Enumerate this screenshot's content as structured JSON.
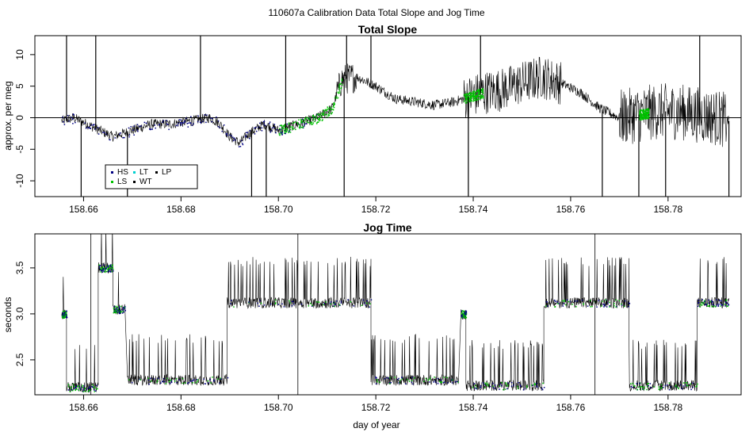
{
  "suptitle": "110607a   Calibration Data Total Slope and Jog Time",
  "xlabel": "day of year",
  "legend": {
    "entries": [
      {
        "label": "HS",
        "color": "#000080"
      },
      {
        "label": "LT",
        "color": "#00d0d0"
      },
      {
        "label": "LP",
        "color": "#000000"
      },
      {
        "label": "LS",
        "color": "#00c000"
      },
      {
        "label": "WT",
        "color": "#000000"
      }
    ]
  },
  "chart_data": [
    {
      "type": "line",
      "title": "Total Slope",
      "xlabel": "",
      "ylabel": "approx. per meg",
      "xlim": [
        158.65,
        158.795
      ],
      "ylim": [
        -12.5,
        13
      ],
      "xticks": [
        "158.66",
        "158.68",
        "158.70",
        "158.72",
        "158.74",
        "158.76",
        "158.78"
      ],
      "yticks": [
        "-10",
        "-5",
        "0",
        "5",
        "10"
      ],
      "hline": 0,
      "series": [
        {
          "color": "#000000",
          "x": [
            158.6555,
            158.658,
            158.662,
            158.666,
            158.67,
            158.674,
            158.678,
            158.682,
            158.686,
            158.688,
            158.69,
            158.692,
            158.694,
            158.697,
            158.7,
            158.704,
            158.708,
            158.711,
            158.713,
            158.716,
            158.72,
            158.724,
            158.728,
            158.732,
            158.736,
            158.738,
            158.742,
            158.746,
            158.75,
            158.754,
            158.758,
            158.762,
            158.766,
            158.77,
            158.774,
            158.778,
            158.782,
            158.786,
            158.79,
            158.7925
          ],
          "y": [
            -0.5,
            0.0,
            -1.5,
            -3.0,
            -2.0,
            -1.0,
            -1.0,
            -0.5,
            0.0,
            -1.0,
            -3.0,
            -4.0,
            -2.5,
            -1.0,
            -2.0,
            -1.0,
            0.0,
            1.5,
            6.0,
            6.5,
            5.0,
            3.0,
            2.5,
            2.0,
            2.5,
            3.0,
            4.0,
            4.5,
            5.5,
            6.5,
            5.5,
            4.0,
            1.5,
            0.0,
            0.5,
            1.0,
            1.0,
            0.5,
            0.0,
            -0.5
          ]
        }
      ]
    },
    {
      "type": "line",
      "title": "Jog Time",
      "xlabel": "day of year",
      "ylabel": "seconds",
      "xlim": [
        158.65,
        158.795
      ],
      "ylim": [
        2.12,
        3.87
      ],
      "xticks": [
        "158.66",
        "158.68",
        "158.70",
        "158.72",
        "158.74",
        "158.76",
        "158.78"
      ],
      "yticks": [
        "2.5",
        "3.0",
        "3.5"
      ],
      "series": [
        {
          "color": "#000000",
          "segments": [
            {
              "x0": 158.6555,
              "x1": 158.6565,
              "y": 3.0
            },
            {
              "x0": 158.6565,
              "x1": 158.663,
              "y": 2.2
            },
            {
              "x0": 158.663,
              "x1": 158.666,
              "y": 3.5
            },
            {
              "x0": 158.666,
              "x1": 158.6685,
              "y": 3.05
            },
            {
              "x0": 158.669,
              "x1": 158.6895,
              "y": 2.28
            },
            {
              "x0": 158.6895,
              "x1": 158.719,
              "y": 3.12
            },
            {
              "x0": 158.719,
              "x1": 158.737,
              "y": 2.28
            },
            {
              "x0": 158.7375,
              "x1": 158.7385,
              "y": 3.0
            },
            {
              "x0": 158.7385,
              "x1": 158.7545,
              "y": 2.22
            },
            {
              "x0": 158.7545,
              "x1": 158.772,
              "y": 3.12
            },
            {
              "x0": 158.772,
              "x1": 158.786,
              "y": 2.22
            },
            {
              "x0": 158.786,
              "x1": 158.7925,
              "y": 3.12
            }
          ]
        }
      ]
    }
  ]
}
